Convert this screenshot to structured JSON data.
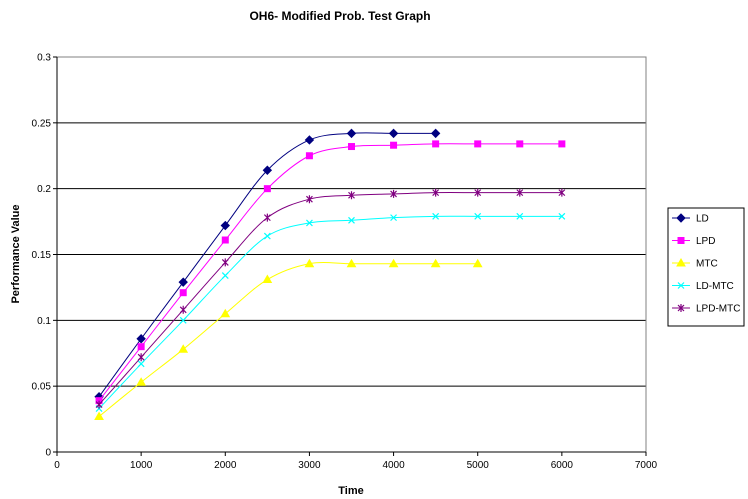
{
  "chart_data": {
    "type": "line",
    "title": "OH6- Modified Prob. Test Graph",
    "xlabel": "Time",
    "ylabel": "Performance Value",
    "xlim": [
      0,
      7000
    ],
    "ylim": [
      0,
      0.3
    ],
    "x_ticks": [
      "0",
      "1000",
      "2000",
      "3000",
      "4000",
      "5000",
      "6000",
      "7000"
    ],
    "y_ticks": [
      "0",
      "0.05",
      "0.1",
      "0.15",
      "0.2",
      "0.25",
      "0.3"
    ],
    "grid": "horizontal",
    "legend_position": "right",
    "series": [
      {
        "name": "LD",
        "color": "#000080",
        "marker": "diamond",
        "points": [
          [
            500,
            0.042
          ],
          [
            1000,
            0.086
          ],
          [
            1500,
            0.129
          ],
          [
            2000,
            0.172
          ],
          [
            2500,
            0.214
          ],
          [
            3000,
            0.237
          ],
          [
            3500,
            0.242
          ],
          [
            4000,
            0.242
          ],
          [
            4500,
            0.242
          ]
        ]
      },
      {
        "name": "LPD",
        "color": "#ff00ff",
        "marker": "square",
        "points": [
          [
            500,
            0.039
          ],
          [
            1000,
            0.08
          ],
          [
            1500,
            0.121
          ],
          [
            2000,
            0.161
          ],
          [
            2500,
            0.2
          ],
          [
            3000,
            0.225
          ],
          [
            3500,
            0.232
          ],
          [
            4000,
            0.233
          ],
          [
            4500,
            0.234
          ],
          [
            5000,
            0.234
          ],
          [
            5500,
            0.234
          ],
          [
            6000,
            0.234
          ]
        ]
      },
      {
        "name": "MTC",
        "color": "#ffff00",
        "marker": "triangle",
        "points": [
          [
            500,
            0.027
          ],
          [
            1000,
            0.053
          ],
          [
            1500,
            0.078
          ],
          [
            2000,
            0.105
          ],
          [
            2500,
            0.131
          ],
          [
            3000,
            0.143
          ],
          [
            3500,
            0.143
          ],
          [
            4000,
            0.143
          ],
          [
            4500,
            0.143
          ],
          [
            5000,
            0.143
          ]
        ]
      },
      {
        "name": "LD-MTC",
        "color": "#00ffff",
        "marker": "x",
        "points": [
          [
            500,
            0.033
          ],
          [
            1000,
            0.067
          ],
          [
            1500,
            0.1
          ],
          [
            2000,
            0.134
          ],
          [
            2500,
            0.164
          ],
          [
            3000,
            0.174
          ],
          [
            3500,
            0.176
          ],
          [
            4000,
            0.178
          ],
          [
            4500,
            0.179
          ],
          [
            5000,
            0.179
          ],
          [
            5500,
            0.179
          ],
          [
            6000,
            0.179
          ]
        ]
      },
      {
        "name": "LPD-MTC",
        "color": "#800080",
        "marker": "star",
        "points": [
          [
            500,
            0.036
          ],
          [
            1000,
            0.072
          ],
          [
            1500,
            0.108
          ],
          [
            2000,
            0.144
          ],
          [
            2500,
            0.178
          ],
          [
            3000,
            0.192
          ],
          [
            3500,
            0.195
          ],
          [
            4000,
            0.196
          ],
          [
            4500,
            0.197
          ],
          [
            5000,
            0.197
          ],
          [
            5500,
            0.197
          ],
          [
            6000,
            0.197
          ]
        ]
      }
    ]
  }
}
